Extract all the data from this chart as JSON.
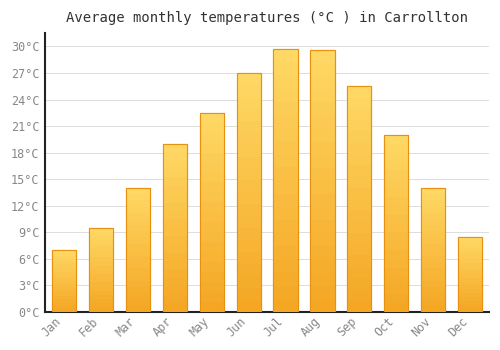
{
  "title": "Average monthly temperatures (°C ) in Carrollton",
  "months": [
    "Jan",
    "Feb",
    "Mar",
    "Apr",
    "May",
    "Jun",
    "Jul",
    "Aug",
    "Sep",
    "Oct",
    "Nov",
    "Dec"
  ],
  "values": [
    7.0,
    9.5,
    14.0,
    19.0,
    22.5,
    27.0,
    29.7,
    29.6,
    25.5,
    20.0,
    14.0,
    8.5
  ],
  "bar_color_bottom": "#F5A623",
  "bar_color_top": "#FFD966",
  "bar_edge_color": "#E89010",
  "background_color": "#FFFFFF",
  "plot_bg_color": "#FFFFFF",
  "grid_color": "#DDDDDD",
  "ytick_step": 3,
  "ylim": [
    0,
    31.5
  ],
  "title_fontsize": 10,
  "tick_fontsize": 8.5,
  "font_family": "monospace",
  "title_color": "#333333",
  "tick_color": "#888888",
  "spine_color": "#222222"
}
